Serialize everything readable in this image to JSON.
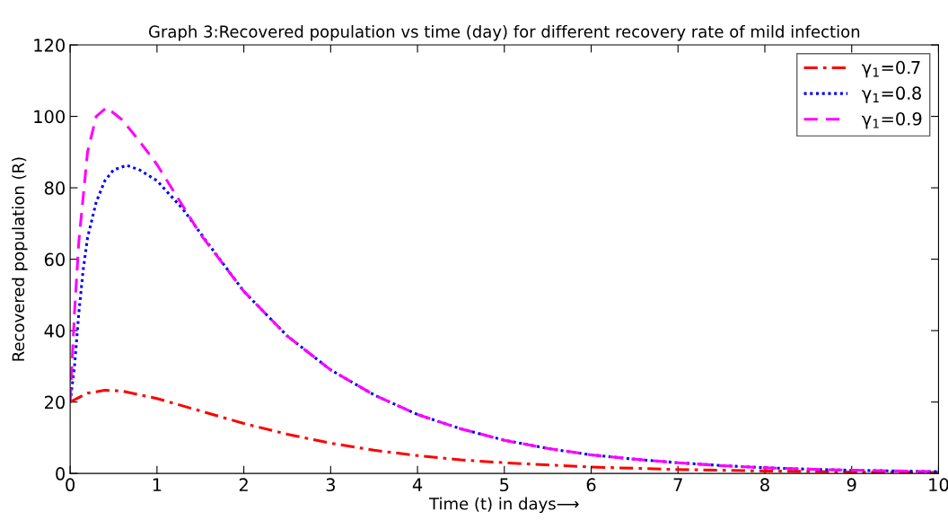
{
  "chart_data": {
    "type": "line",
    "title": "Graph 3:Recovered population vs time (day) for different recovery rate of mild infection",
    "xlabel": "Time (t) in days⟶",
    "ylabel": "Recovered population (R)",
    "xlim": [
      0,
      10
    ],
    "ylim": [
      0,
      120
    ],
    "xticks": [
      0,
      1,
      2,
      3,
      4,
      5,
      6,
      7,
      8,
      9,
      10
    ],
    "yticks": [
      0,
      20,
      40,
      60,
      80,
      100,
      120
    ],
    "grid": false,
    "legend": "top right",
    "marker": "none",
    "series": [
      {
        "name": "γ$_{1}$=0.7",
        "color": "#ff0000",
        "line_style": "dashdot",
        "x": [
          0,
          0.2,
          0.4,
          0.6,
          0.8,
          1,
          1.5,
          2,
          2.5,
          3,
          3.5,
          4,
          4.5,
          5,
          6,
          7,
          8,
          9,
          10
        ],
        "values": [
          20,
          22.5,
          23.3,
          23.1,
          22,
          21,
          17.5,
          14,
          11,
          8.5,
          6.5,
          5,
          3.8,
          3,
          1.8,
          1.1,
          0.7,
          0.4,
          0.3
        ]
      },
      {
        "name": "γ$_{1}$=0.8",
        "color": "#0000ff",
        "line_style": "dotted",
        "x": [
          0,
          0.05,
          0.1,
          0.15,
          0.2,
          0.3,
          0.4,
          0.5,
          0.65,
          0.8,
          1,
          1.3,
          1.6,
          2,
          2.5,
          3,
          3.5,
          4,
          4.5,
          5,
          5.5,
          6,
          6.5,
          7,
          7.5,
          8,
          8.5,
          9,
          9.5,
          10
        ],
        "values": [
          20,
          30,
          45,
          57,
          66,
          76,
          82,
          85,
          86.3,
          85,
          82,
          74,
          64,
          51,
          38.5,
          29,
          22,
          16.5,
          12.5,
          9.3,
          7,
          5.2,
          4,
          3,
          2.2,
          1.6,
          1.2,
          0.9,
          0.7,
          0.5
        ]
      },
      {
        "name": "γ$_{1}$=0.9",
        "color": "#ff00ff",
        "line_style": "dashed",
        "x": [
          0,
          0.05,
          0.1,
          0.2,
          0.3,
          0.42,
          0.6,
          0.8,
          1,
          1.5,
          2,
          2.5,
          3,
          3.5,
          4,
          4.5,
          5,
          5.5,
          6,
          6.5,
          7,
          7.5,
          8,
          8.5,
          9,
          9.5,
          10
        ],
        "values": [
          20,
          45,
          65,
          90,
          100,
          102.5,
          99,
          93,
          86.5,
          67,
          51,
          38.5,
          29,
          22,
          16.5,
          12.5,
          9.3,
          7,
          5.2,
          4,
          3,
          2.2,
          1.6,
          1.2,
          0.9,
          0.7,
          0.5
        ]
      }
    ]
  }
}
